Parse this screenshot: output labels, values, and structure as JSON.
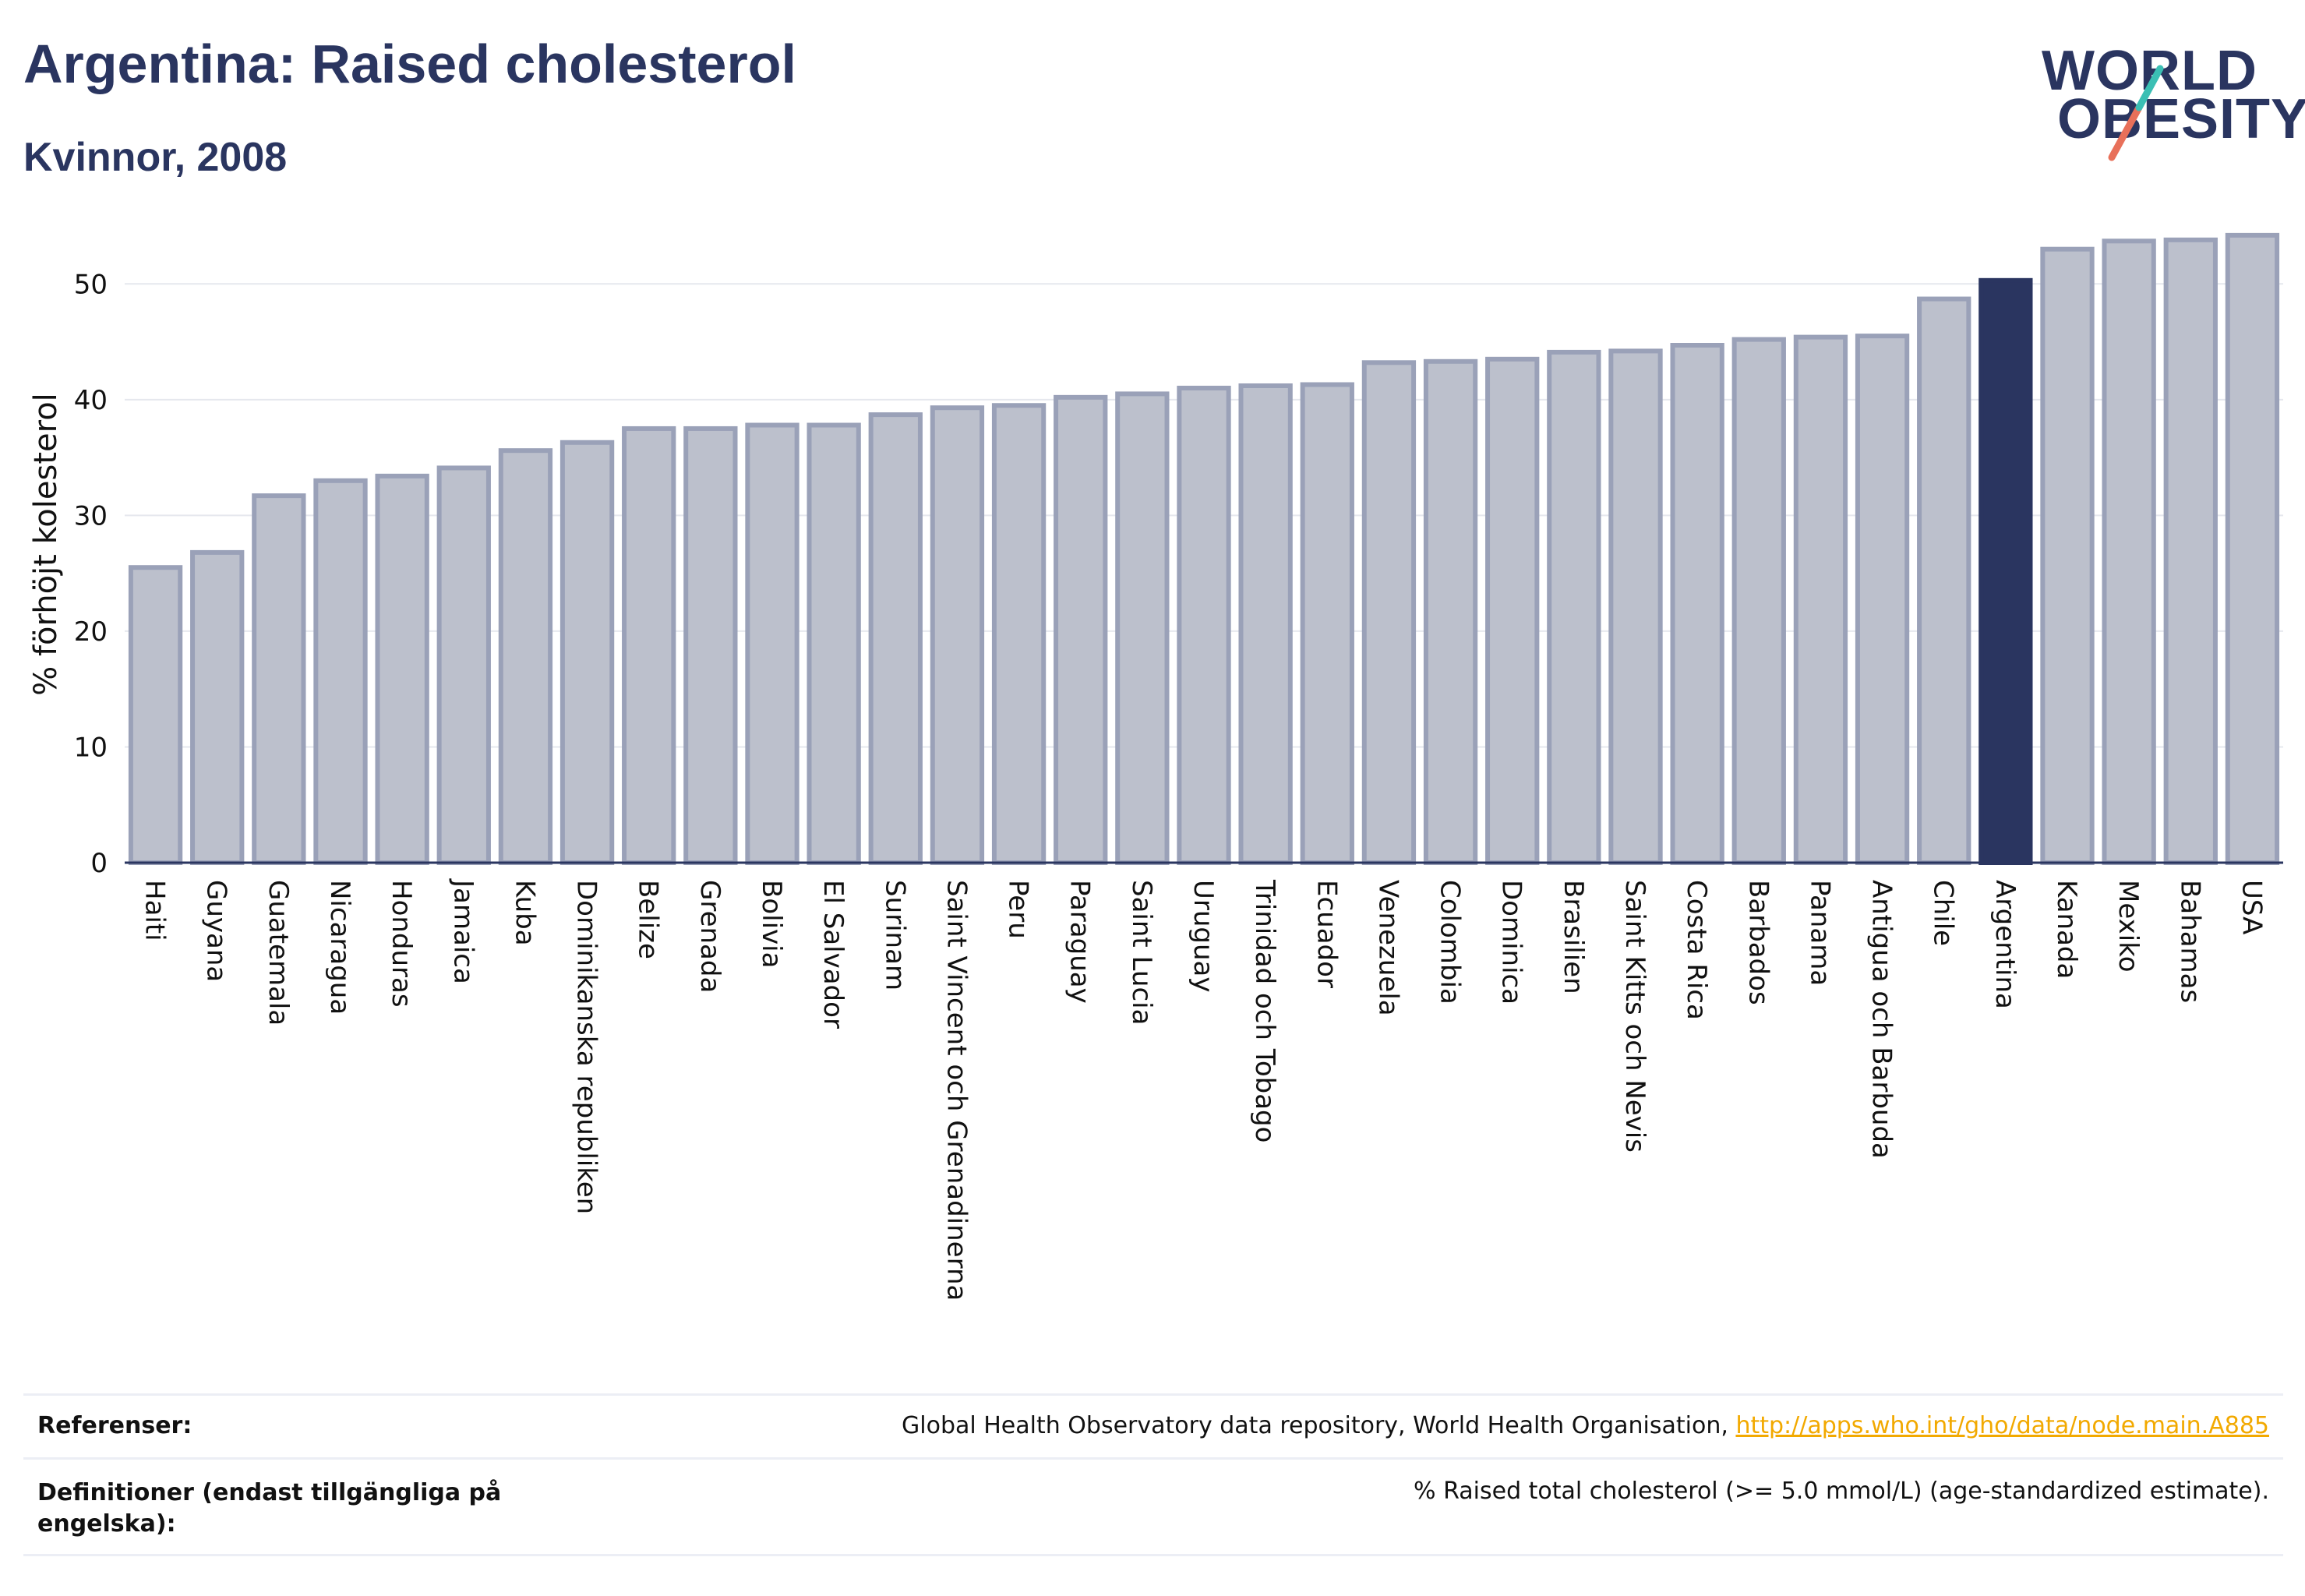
{
  "header": {
    "title": "Argentina: Raised cholesterol",
    "subtitle": "Kvinnor, 2008"
  },
  "logo": {
    "line1": "WORLD",
    "line2": "OBESITY",
    "slash_colors": [
      "#3bbfb4",
      "#e8705a"
    ]
  },
  "colors": {
    "bar": "#bcc0cc",
    "bar_edge": "#9aa1b8",
    "highlight": "#2a3560",
    "axis": "#2a3560",
    "grid": "#e6e8ee",
    "link": "#f2a900"
  },
  "chart_data": {
    "type": "bar",
    "ylabel": "% förhöjt kolesterol",
    "xlabel": "",
    "ylim": [
      0,
      55
    ],
    "yticks": [
      0,
      10,
      20,
      30,
      40,
      50
    ],
    "grid": true,
    "highlight": "Argentina",
    "categories": [
      "Haiti",
      "Guyana",
      "Guatemala",
      "Nicaragua",
      "Honduras",
      "Jamaica",
      "Kuba",
      "Dominikanska republiken",
      "Belize",
      "Grenada",
      "Bolivia",
      "El Salvador",
      "Surinam",
      "Saint Vincent och Grenadinerna",
      "Peru",
      "Paraguay",
      "Saint Lucia",
      "Uruguay",
      "Trinidad och Tobago",
      "Ecuador",
      "Venezuela",
      "Colombia",
      "Dominica",
      "Brasilien",
      "Saint Kitts och Nevis",
      "Costa Rica",
      "Barbados",
      "Panama",
      "Antigua och Barbuda",
      "Chile",
      "Argentina",
      "Kanada",
      "Mexiko",
      "Bahamas",
      "USA"
    ],
    "values": [
      25.5,
      26.8,
      31.7,
      33.0,
      33.4,
      34.1,
      35.6,
      36.3,
      37.5,
      37.5,
      37.8,
      37.8,
      38.7,
      39.3,
      39.5,
      40.2,
      40.5,
      41.0,
      41.2,
      41.3,
      43.2,
      43.3,
      43.5,
      44.1,
      44.2,
      44.7,
      45.2,
      45.4,
      45.5,
      48.7,
      50.3,
      53.0,
      53.7,
      53.8,
      54.2
    ]
  },
  "footer": {
    "references_label": "Referenser:",
    "references_text": "Global Health Observatory data repository, World Health Organisation, ",
    "references_link": "http://apps.who.int/gho/data/node.main.A885",
    "definitions_label": "Definitioner (endast tillgängliga på engelska):",
    "definitions_text": "% Raised total cholesterol (>= 5.0 mmol/L) (age-standardized estimate)."
  }
}
